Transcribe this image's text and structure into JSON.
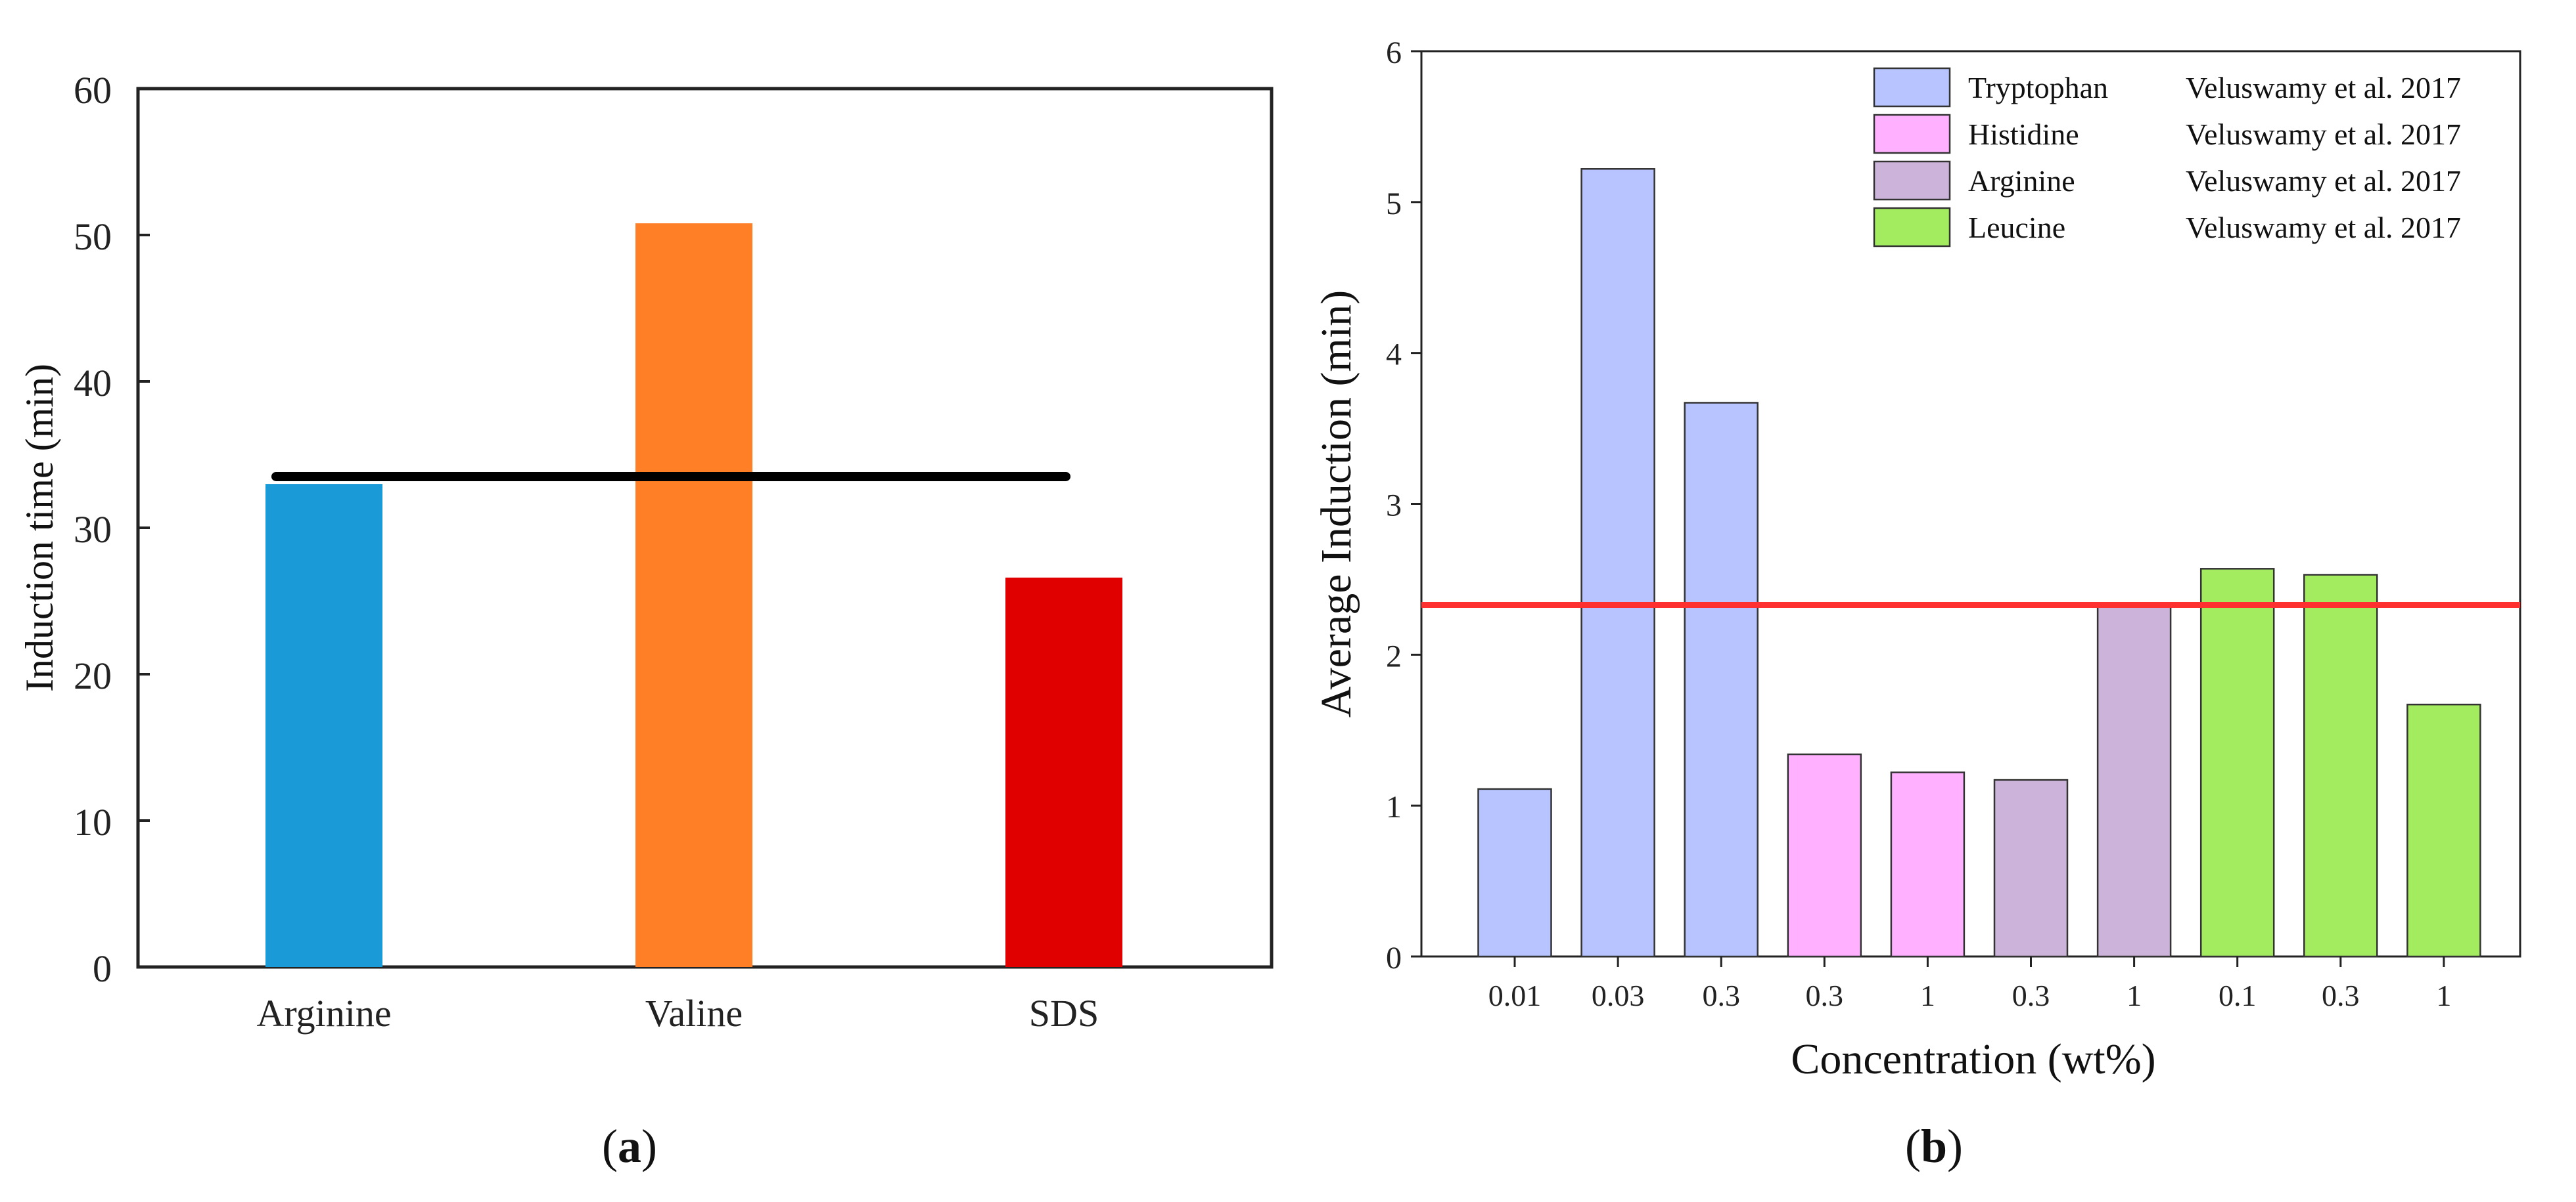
{
  "chart_data": [
    {
      "panel": "(a)",
      "panel_letter": "a",
      "type": "bar",
      "categories": [
        "Arginine",
        "Valine",
        "SDS"
      ],
      "values": [
        33.0,
        50.8,
        26.6
      ],
      "colors": [
        "#1a9bd7",
        "#ff7f27",
        "#e00000"
      ],
      "ylabel": "Induction time (min)",
      "xlabel": "",
      "ylim": [
        0,
        60
      ],
      "yticks": [
        0,
        10,
        20,
        30,
        40,
        50,
        60
      ],
      "reference_line": {
        "value": 33.5,
        "color": "#000000"
      },
      "grid": false
    },
    {
      "panel": "(b)",
      "panel_letter": "b",
      "type": "bar",
      "categories": [
        "0.01",
        "0.03",
        "0.3",
        "0.3",
        "1",
        "0.3",
        "1",
        "0.1",
        "0.3",
        "1"
      ],
      "values": [
        1.11,
        5.22,
        3.67,
        1.34,
        1.22,
        1.17,
        2.33,
        2.57,
        2.53,
        1.67
      ],
      "groups": [
        0,
        0,
        0,
        1,
        1,
        2,
        2,
        3,
        3,
        3
      ],
      "ylabel": "Average Induction (min)",
      "xlabel": "Concentration (wt%)",
      "ylim": [
        0,
        6
      ],
      "yticks": [
        0,
        1,
        2,
        3,
        4,
        5,
        6
      ],
      "reference_line": {
        "value": 2.33,
        "color": "#ff3030"
      },
      "legend": [
        {
          "name": "Tryptophan",
          "source": "Veluswamy et al. 2017",
          "color": "#b8c4ff"
        },
        {
          "name": "Histidine",
          "source": "Veluswamy et al. 2017",
          "color": "#ffb0ff"
        },
        {
          "name": "Arginine",
          "source": "Veluswamy et al. 2017",
          "color": "#cbb3d9"
        },
        {
          "name": "Leucine",
          "source": "Veluswamy et al. 2017",
          "color": "#a3eb5f"
        }
      ],
      "legend_position": "top-right",
      "grid": false
    }
  ]
}
